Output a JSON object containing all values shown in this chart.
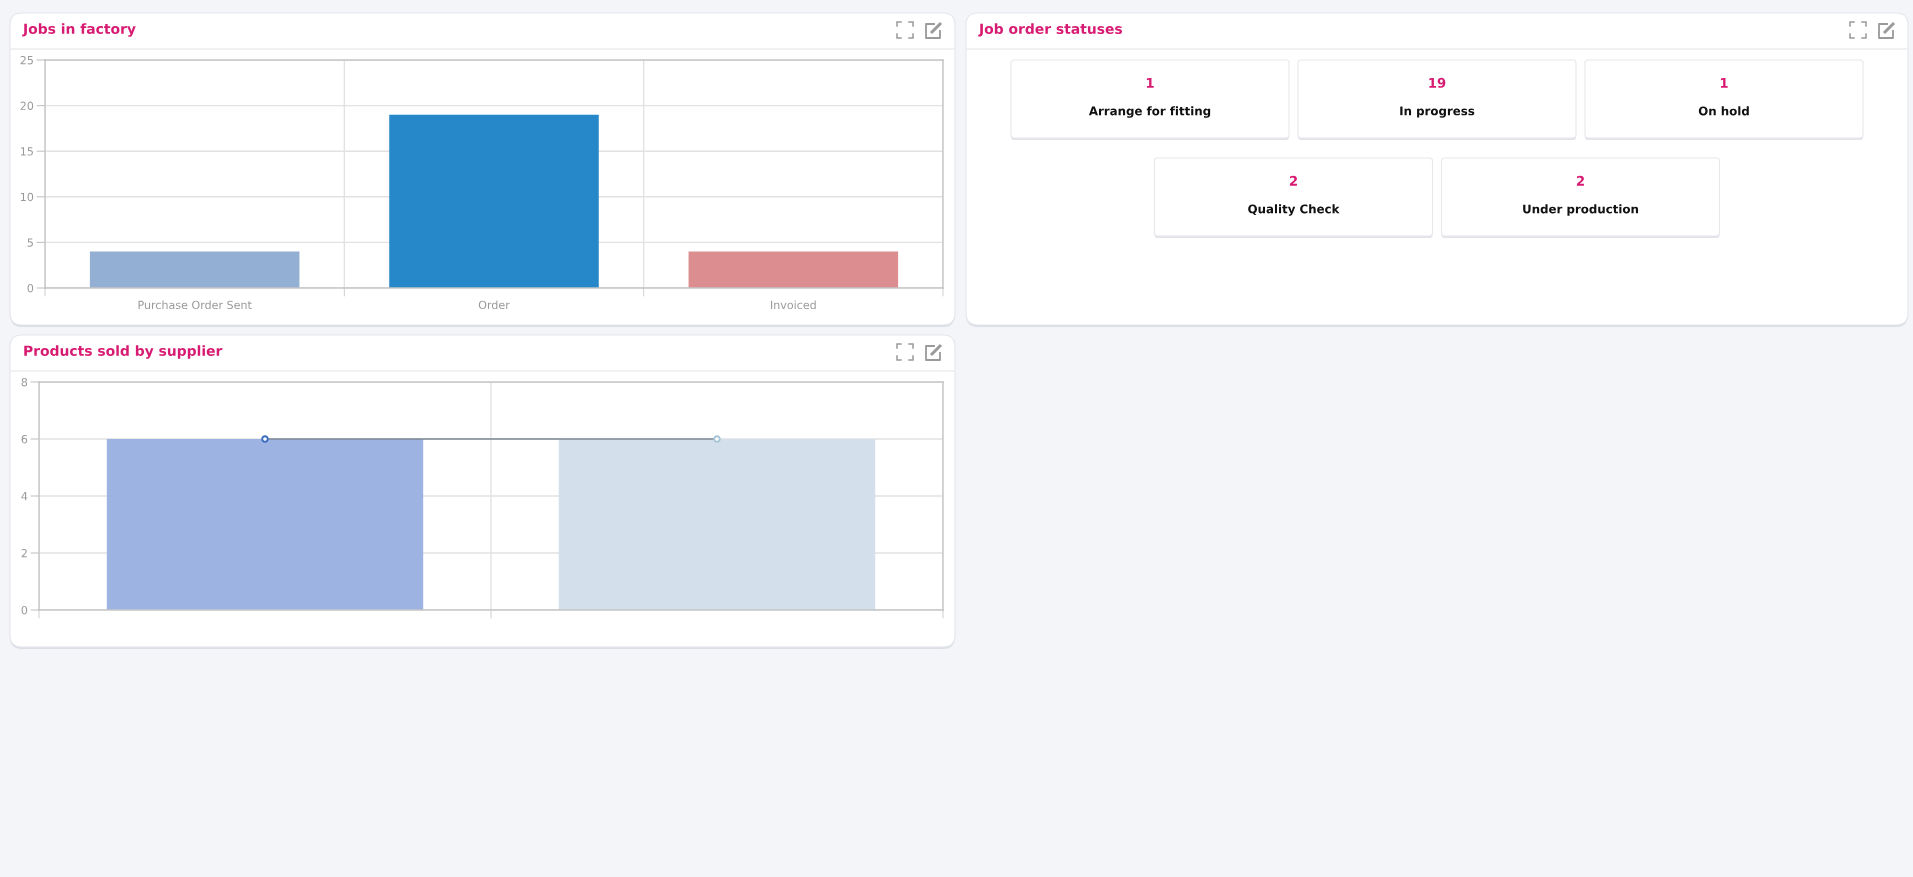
{
  "chart_data": [
    {
      "type": "bar",
      "title": "Jobs in factory",
      "categories": [
        "Purchase Order Sent",
        "Order",
        "Invoiced"
      ],
      "values": [
        4,
        19,
        4
      ],
      "colors": [
        "#93b0d4",
        "#2688c9",
        "#db8d90"
      ],
      "ylim": [
        0,
        25
      ],
      "yticks": [
        0,
        5,
        10,
        15,
        20,
        25
      ],
      "grid": true
    },
    {
      "type": "other",
      "title": "Job order statuses",
      "categories": [
        "Arrange for fitting",
        "In progress",
        "On hold",
        "Quality Check",
        "Under production"
      ],
      "values": [
        1,
        19,
        1,
        2,
        2
      ],
      "data_labels": true
    },
    {
      "type": "bar",
      "title": "Products sold by supplier",
      "categories": [
        null,
        null
      ],
      "series": [
        {
          "type": "bar",
          "colors": [
            "#9db4e2",
            "#d3e0eb"
          ],
          "values": [
            6,
            6
          ]
        },
        {
          "type": "line",
          "color": "#7d8794",
          "colors": [
            "#3d6cc0",
            "#a9c5d8"
          ],
          "values": [
            6,
            6
          ]
        }
      ],
      "marker": "circle",
      "ylim": [
        0,
        8
      ],
      "yticks": [
        0,
        2,
        4,
        6,
        8
      ],
      "grid": true
    }
  ]
}
